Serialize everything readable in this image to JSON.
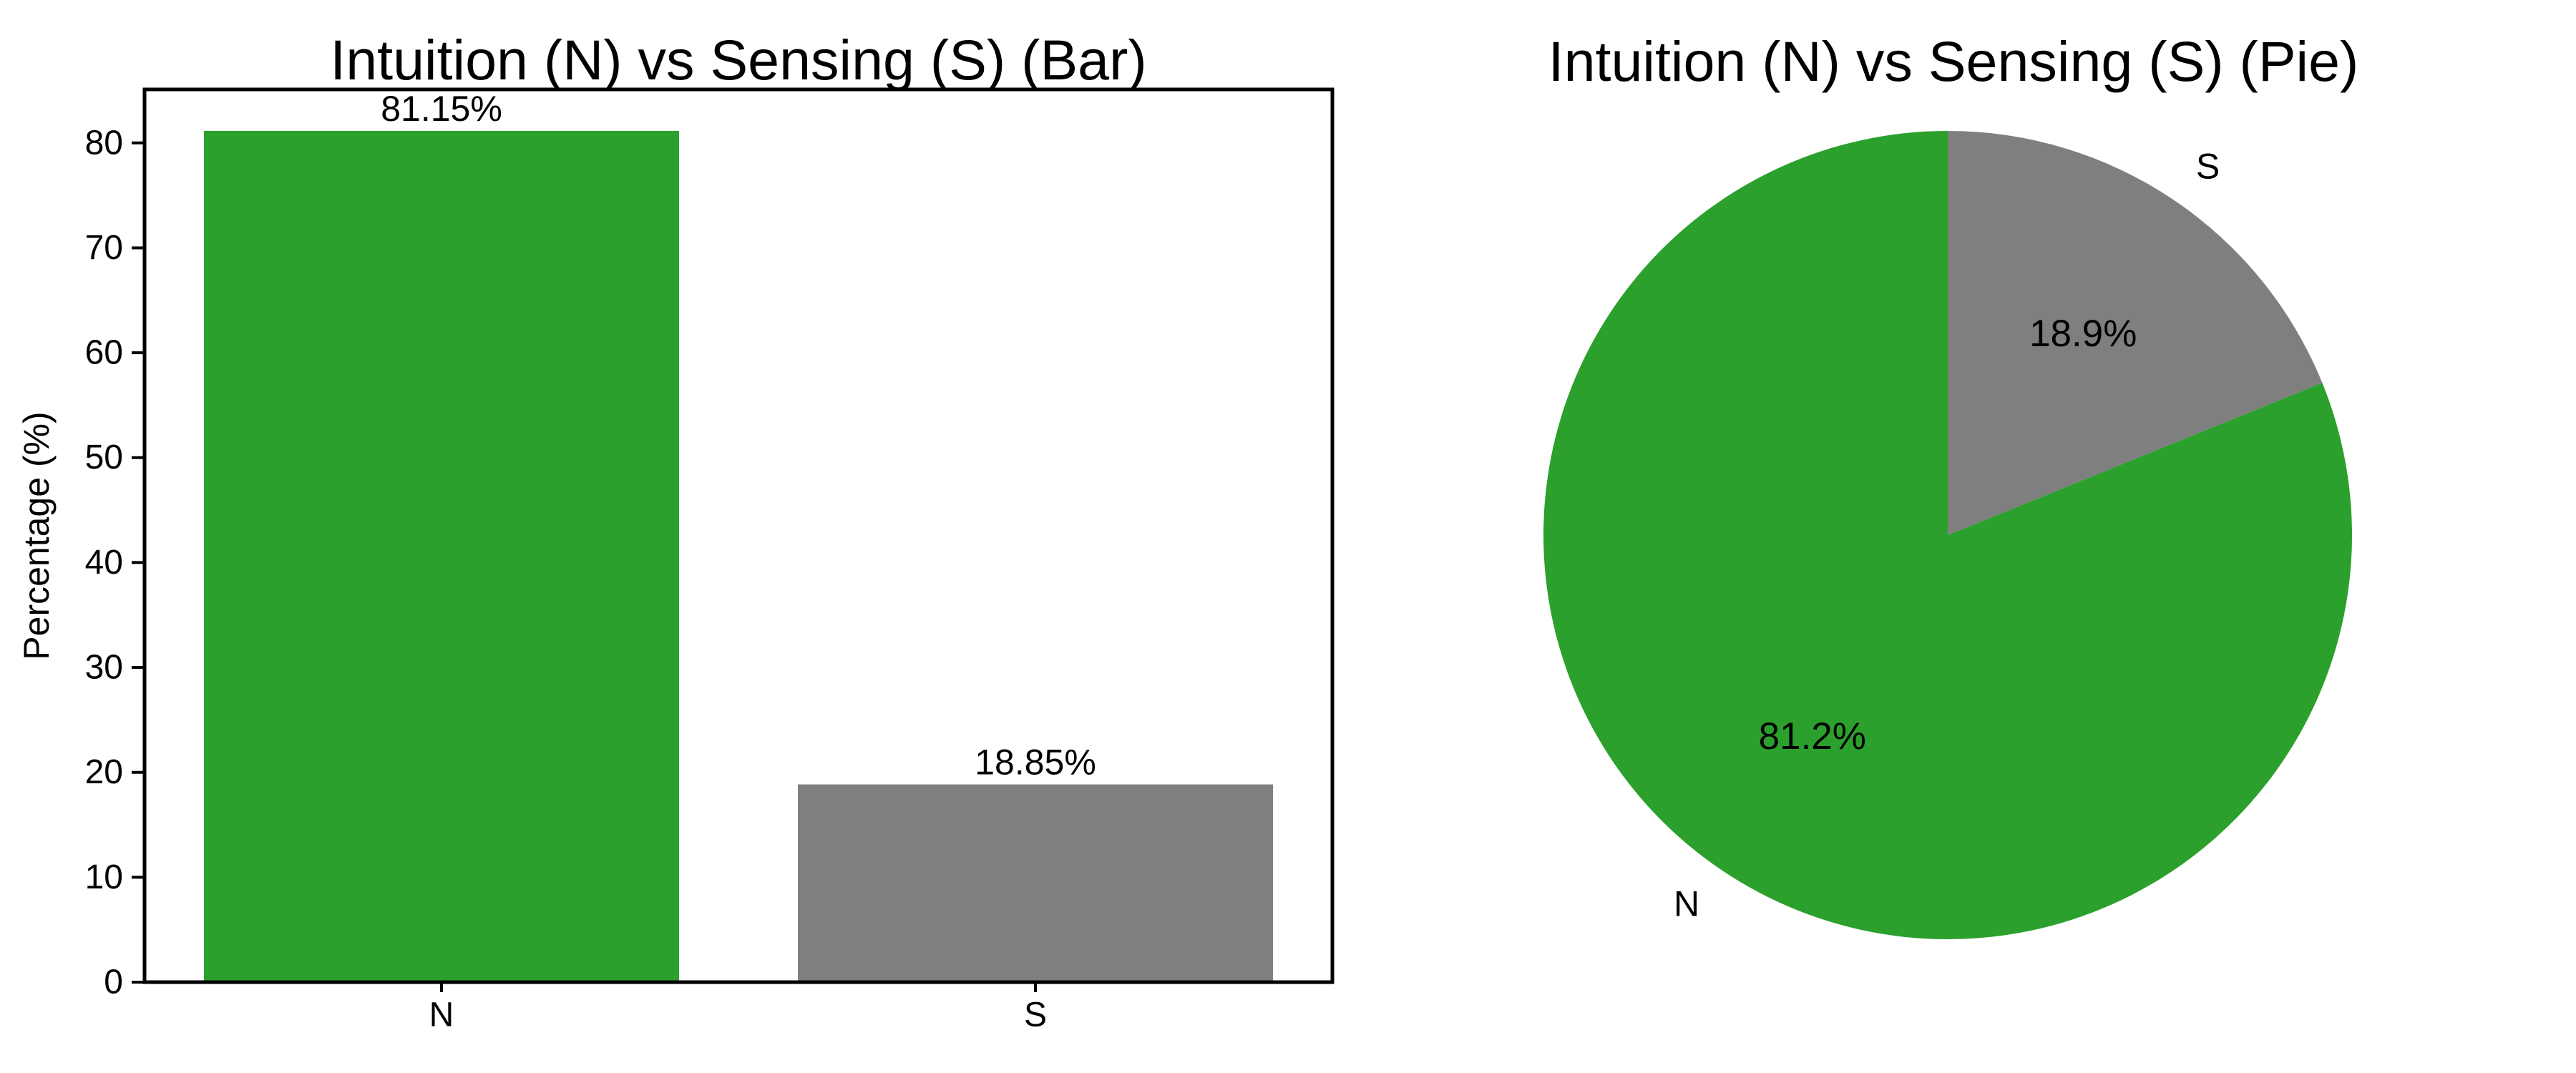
{
  "figure": {
    "background": "#ffffff",
    "text_color": "#000000"
  },
  "chart_data": [
    {
      "type": "bar",
      "title": "Intuition (N) vs Sensing (S) (Bar)",
      "xlabel": "",
      "ylabel": "Percentage (%)",
      "categories": [
        "N",
        "S"
      ],
      "values": [
        81.15,
        18.85
      ],
      "bar_labels": [
        "81.15%",
        "18.85%"
      ],
      "colors": [
        "#2ca02c",
        "#7f7f7f"
      ],
      "yticks": [
        0,
        10,
        20,
        30,
        40,
        50,
        60,
        70,
        80
      ],
      "ylim": [
        0,
        85.1
      ],
      "grid": false,
      "legend": null
    },
    {
      "type": "pie",
      "title": "Intuition (N) vs Sensing (S) (Pie)",
      "labels": [
        "N",
        "S"
      ],
      "values": [
        81.15,
        18.85
      ],
      "pct_labels": [
        "81.2%",
        "18.9%"
      ],
      "colors": [
        "#2ca02c",
        "#7f7f7f"
      ],
      "start_angle": 90,
      "counterclockwise": true,
      "label_distance": 1.1,
      "pct_distance": 0.6
    }
  ]
}
